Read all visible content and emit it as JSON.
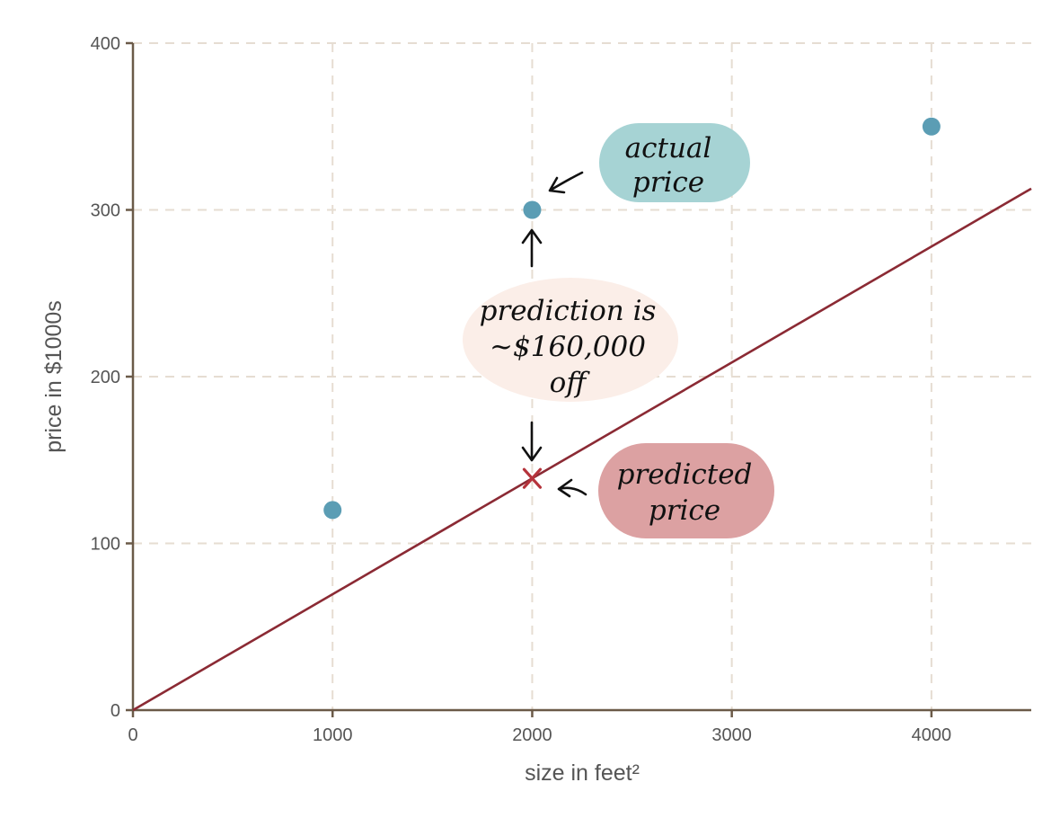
{
  "chart_data": {
    "type": "scatter",
    "xlabel": "size in feet²",
    "ylabel": "price in $1000s",
    "xlim": [
      0,
      4500
    ],
    "ylim": [
      0,
      400
    ],
    "x_ticks": [
      0,
      1000,
      2000,
      3000,
      4000
    ],
    "y_ticks": [
      0,
      100,
      200,
      300,
      400
    ],
    "grid": true,
    "points": [
      {
        "x": 1000,
        "y": 120
      },
      {
        "x": 2000,
        "y": 300
      },
      {
        "x": 4000,
        "y": 350
      }
    ],
    "regression_line": {
      "slope": 0.0695,
      "intercept": 0
    },
    "predicted_point": {
      "x": 2000,
      "y": 139
    },
    "annotations": {
      "actual": [
        "actual",
        "price"
      ],
      "error": [
        "prediction is",
        "~$160,000",
        "off"
      ],
      "predicted": [
        "predicted",
        "price"
      ]
    },
    "colors": {
      "point": "#5b9db4",
      "line": "#8b2a34",
      "actual_bubble": "#a6d3d4",
      "error_bubble": "#fbeee8",
      "predicted_bubble": "#dca1a2",
      "grid": "#e6ddd2",
      "axis": "#6b5a48"
    }
  }
}
